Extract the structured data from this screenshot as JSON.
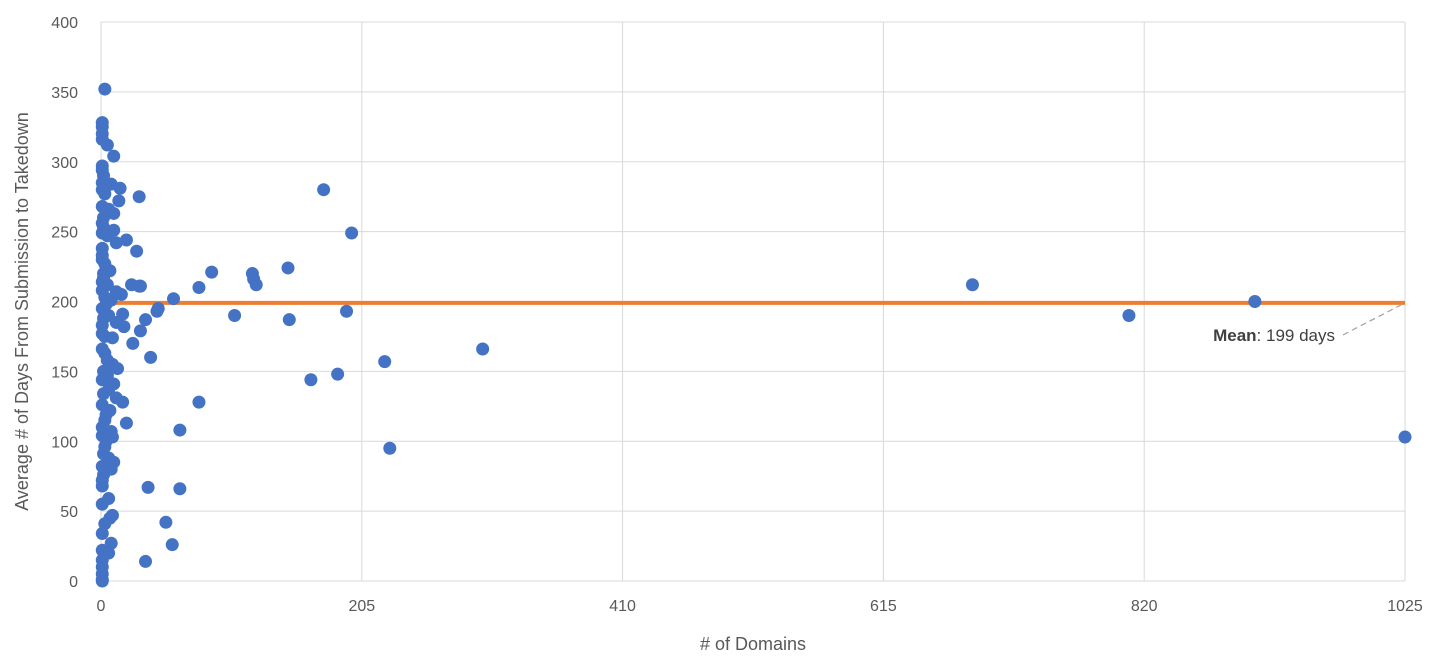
{
  "chart_data": {
    "type": "scatter",
    "xlabel": "# of Domains",
    "ylabel": "Average # of Days From Submission to Takedown",
    "xlim": [
      0,
      1025
    ],
    "ylim": [
      0,
      400
    ],
    "xticks": [
      0,
      205,
      410,
      615,
      820,
      1025
    ],
    "yticks": [
      0,
      50,
      100,
      150,
      200,
      250,
      300,
      350,
      400
    ],
    "grid": true,
    "colors": {
      "points": "#4472c4",
      "mean_line": "#ed7d31",
      "grid": "#d9d9d9",
      "annotation_leader": "#a6a6a6"
    },
    "mean": {
      "value": 199,
      "x_range": [
        0,
        1025
      ],
      "label_bold": "Mean",
      "label_rest": ": 199 days"
    },
    "series": [
      {
        "points": [
          [
            3,
            352
          ],
          [
            1,
            328
          ],
          [
            1,
            325
          ],
          [
            1,
            320
          ],
          [
            1,
            316
          ],
          [
            5,
            312
          ],
          [
            10,
            304
          ],
          [
            1,
            297
          ],
          [
            1,
            294
          ],
          [
            2,
            290
          ],
          [
            1,
            285
          ],
          [
            8,
            284
          ],
          [
            1,
            280
          ],
          [
            15,
            281
          ],
          [
            3,
            277
          ],
          [
            30,
            275
          ],
          [
            14,
            272
          ],
          [
            1,
            268
          ],
          [
            6,
            266
          ],
          [
            10,
            263
          ],
          [
            2,
            260
          ],
          [
            1,
            256
          ],
          [
            2,
            253
          ],
          [
            10,
            251
          ],
          [
            1,
            249
          ],
          [
            5,
            247
          ],
          [
            20,
            244
          ],
          [
            12,
            242
          ],
          [
            1,
            238
          ],
          [
            28,
            236
          ],
          [
            1,
            233
          ],
          [
            1,
            230
          ],
          [
            3,
            227
          ],
          [
            7,
            222
          ],
          [
            2,
            220
          ],
          [
            2,
            217
          ],
          [
            1,
            214
          ],
          [
            5,
            212
          ],
          [
            24,
            212
          ],
          [
            30,
            211
          ],
          [
            31,
            211
          ],
          [
            1,
            208
          ],
          [
            12,
            207
          ],
          [
            16,
            205
          ],
          [
            3,
            203
          ],
          [
            8,
            201
          ],
          [
            57,
            202
          ],
          [
            4,
            198
          ],
          [
            1,
            195
          ],
          [
            45,
            195
          ],
          [
            44,
            193
          ],
          [
            17,
            191
          ],
          [
            6,
            190
          ],
          [
            2,
            188
          ],
          [
            35,
            187
          ],
          [
            12,
            185
          ],
          [
            1,
            183
          ],
          [
            18,
            182
          ],
          [
            31,
            179
          ],
          [
            1,
            177
          ],
          [
            3,
            175
          ],
          [
            9,
            174
          ],
          [
            25,
            170
          ],
          [
            1,
            166
          ],
          [
            3,
            163
          ],
          [
            39,
            160
          ],
          [
            5,
            158
          ],
          [
            9,
            155
          ],
          [
            13,
            152
          ],
          [
            2,
            150
          ],
          [
            5,
            147
          ],
          [
            1,
            144
          ],
          [
            10,
            141
          ],
          [
            6,
            137
          ],
          [
            2,
            134
          ],
          [
            12,
            131
          ],
          [
            17,
            128
          ],
          [
            1,
            126
          ],
          [
            7,
            122
          ],
          [
            4,
            119
          ],
          [
            3,
            115
          ],
          [
            20,
            113
          ],
          [
            1,
            110
          ],
          [
            8,
            107
          ],
          [
            1,
            104
          ],
          [
            9,
            103
          ],
          [
            4,
            100
          ],
          [
            3,
            96
          ],
          [
            2,
            91
          ],
          [
            6,
            88
          ],
          [
            10,
            85
          ],
          [
            1,
            82
          ],
          [
            8,
            80
          ],
          [
            2,
            76
          ],
          [
            1,
            72
          ],
          [
            1,
            68
          ],
          [
            6,
            59
          ],
          [
            1,
            55
          ],
          [
            9,
            47
          ],
          [
            7,
            45
          ],
          [
            3,
            41
          ],
          [
            1,
            34
          ],
          [
            8,
            27
          ],
          [
            1,
            22
          ],
          [
            6,
            20
          ],
          [
            1,
            15
          ],
          [
            1,
            10
          ],
          [
            1,
            5
          ],
          [
            1,
            1
          ],
          [
            1,
            0
          ],
          [
            37,
            67
          ],
          [
            62,
            66
          ],
          [
            51,
            42
          ],
          [
            35,
            14
          ],
          [
            56,
            26
          ],
          [
            62,
            108
          ],
          [
            77,
            128
          ],
          [
            77,
            210
          ],
          [
            87,
            221
          ],
          [
            105,
            190
          ],
          [
            119,
            220
          ],
          [
            120,
            216
          ],
          [
            122,
            212
          ],
          [
            147,
            224
          ],
          [
            148,
            187
          ],
          [
            175,
            280
          ],
          [
            193,
            193
          ],
          [
            197,
            249
          ],
          [
            165,
            144
          ],
          [
            186,
            148
          ],
          [
            223,
            157
          ],
          [
            227,
            95
          ],
          [
            300,
            166
          ],
          [
            685,
            212
          ],
          [
            808,
            190
          ],
          [
            907,
            200
          ],
          [
            1025,
            103
          ]
        ]
      }
    ]
  }
}
